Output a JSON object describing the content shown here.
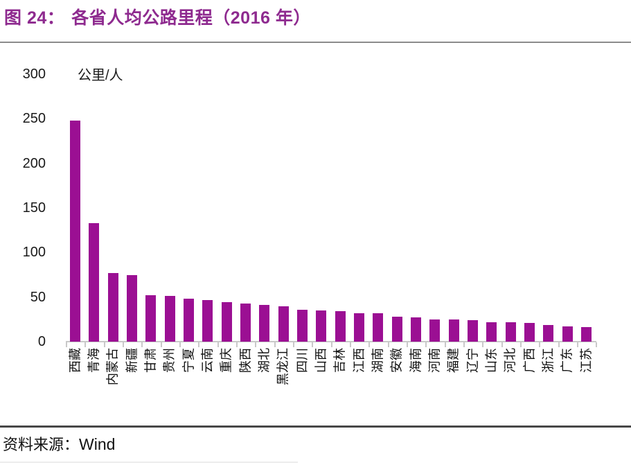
{
  "header": {
    "title_prefix": "图 24：",
    "title_main": "各省人均公路里程（2016 年）"
  },
  "chart_data": {
    "type": "bar",
    "title": "各省人均公路里程（2016 年）",
    "unit_label": "公里/人",
    "categories": [
      "西藏",
      "青海",
      "内蒙古",
      "新疆",
      "甘肃",
      "贵州",
      "宁夏",
      "云南",
      "重庆",
      "陕西",
      "湖北",
      "黑龙江",
      "四川",
      "山西",
      "吉林",
      "江西",
      "湖南",
      "安徽",
      "海南",
      "河南",
      "福建",
      "辽宁",
      "山东",
      "河北",
      "广西",
      "浙江",
      "广东",
      "江苏"
    ],
    "values": [
      248,
      133,
      77,
      75,
      52,
      51,
      48,
      47,
      44,
      43,
      41,
      40,
      36,
      35,
      34,
      32,
      32,
      28,
      27,
      25,
      25,
      24,
      22,
      22,
      21,
      19,
      17,
      16
    ],
    "yticks": [
      300,
      250,
      200,
      150,
      100,
      50,
      0
    ],
    "ylim": [
      0,
      300
    ],
    "xlabel": "",
    "ylabel": "公里/人",
    "grid": false,
    "legend": false,
    "bar_color": "#9B0F93"
  },
  "footer": {
    "source_label": "资料来源：",
    "source_value": "Wind"
  },
  "colors": {
    "title": "#8E2A8F",
    "bar": "#9B0F93",
    "axis_line": "#C9C9C9",
    "title_separator": "#8C8C8C",
    "footer_separator": "#474747"
  }
}
